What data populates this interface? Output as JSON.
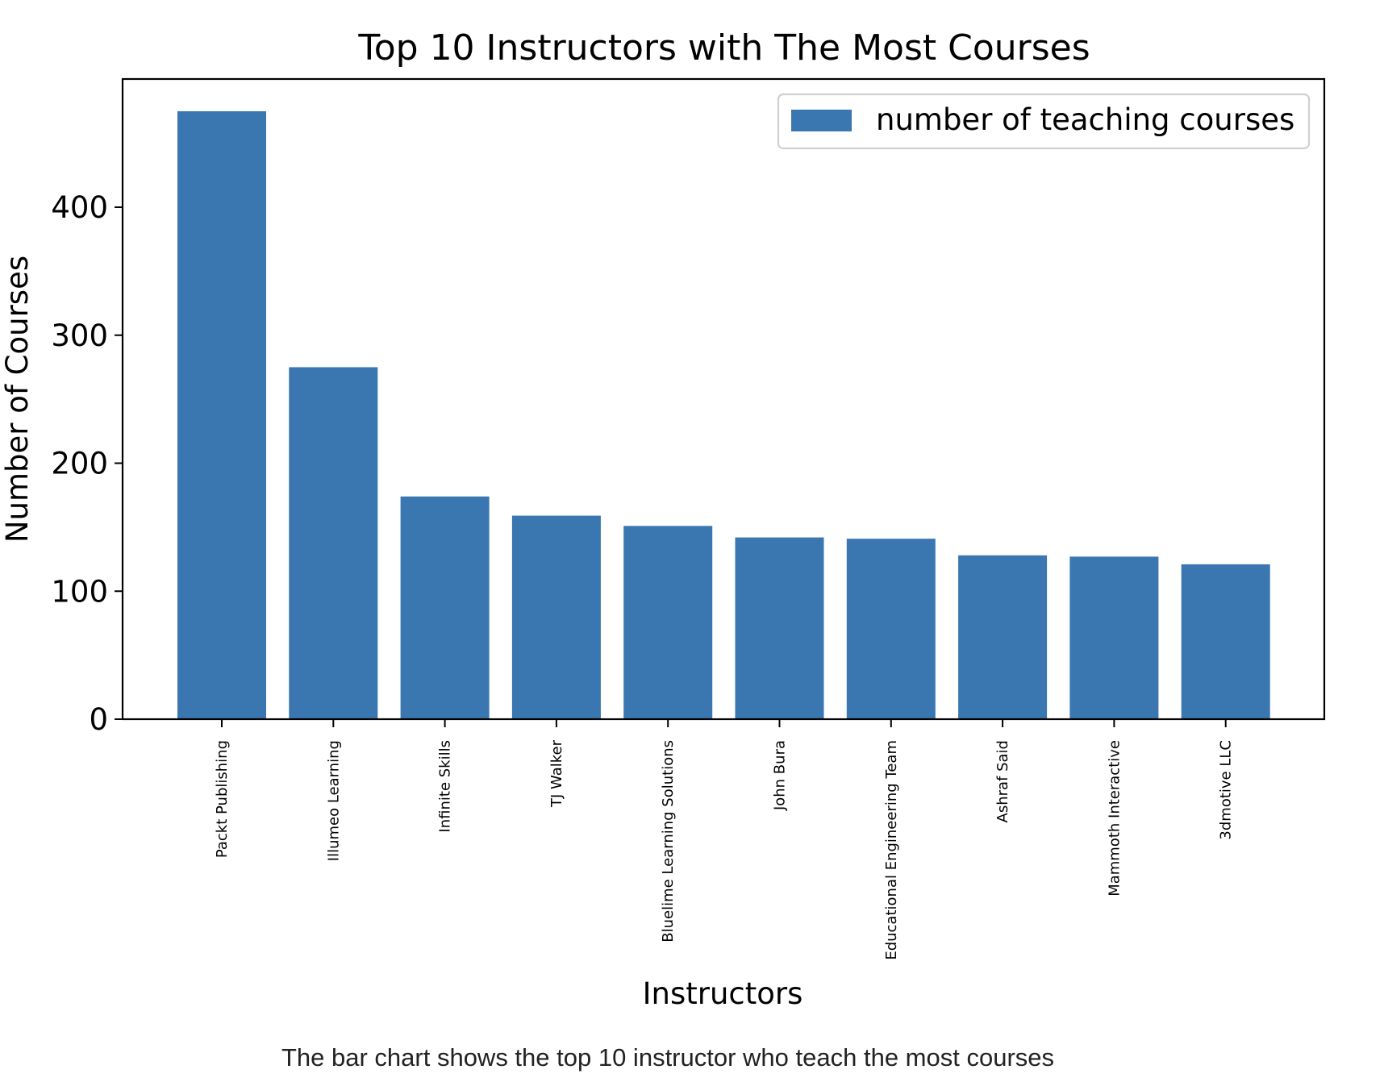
{
  "caption": "The bar chart shows the top 10 instructor who teach the most courses",
  "chart_data": {
    "type": "bar",
    "title": "Top 10 Instructors with The Most Courses",
    "xlabel": "Instructors",
    "ylabel": "Number of Courses",
    "categories": [
      "Packt Publishing",
      "Illumeo Learning",
      "Infinite Skills",
      "TJ Walker",
      "Bluelime Learning Solutions",
      "John Bura",
      "Educational Engineering Team",
      "Ashraf Said",
      "Mammoth Interactive",
      "3dmotive LLC"
    ],
    "series": [
      {
        "name": "number of teaching courses",
        "values": [
          475,
          275,
          174,
          159,
          151,
          142,
          141,
          128,
          127,
          121
        ],
        "color": "#3a76b0"
      }
    ],
    "yticks": [
      0,
      100,
      200,
      300,
      400
    ],
    "ylim": [
      0,
      500
    ],
    "grid": false,
    "legend": "top-right"
  }
}
